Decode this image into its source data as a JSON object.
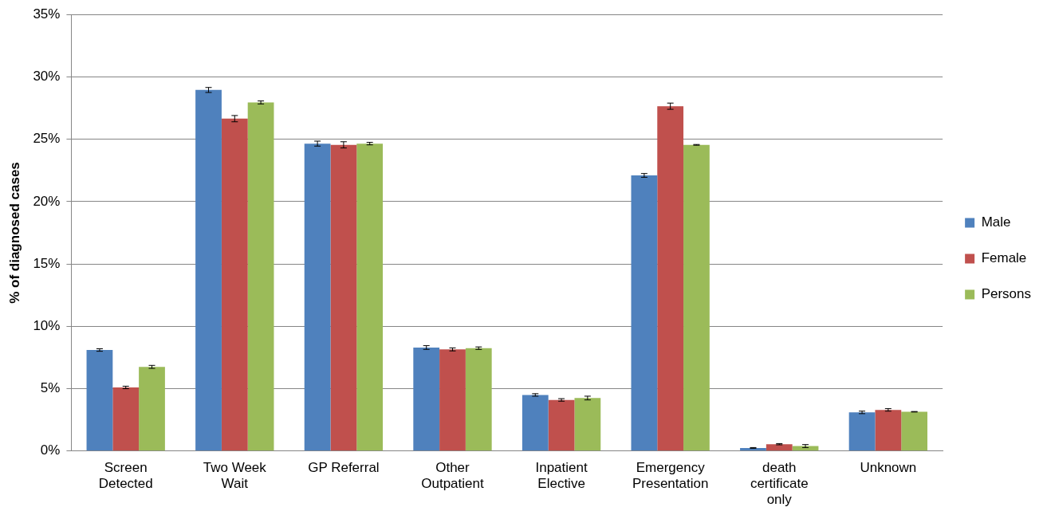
{
  "chart_data": {
    "type": "bar",
    "ylabel": "% of diagnosed cases",
    "categories": [
      "Screen Detected",
      "Two Week Wait",
      "GP Referral",
      "Other Outpatient",
      "Inpatient Elective",
      "Emergency Presentation",
      "death certificate only",
      "Unknown"
    ],
    "series": [
      {
        "name": "Male",
        "color": "#4f81bd",
        "values": [
          8.1,
          28.95,
          24.65,
          8.3,
          4.5,
          22.1,
          0.25,
          3.1
        ],
        "errors": [
          0.1,
          0.2,
          0.2,
          0.15,
          0.1,
          0.15,
          0.03,
          0.1
        ]
      },
      {
        "name": "Female",
        "color": "#c0504d",
        "values": [
          5.1,
          26.65,
          24.55,
          8.15,
          4.1,
          27.65,
          0.55,
          3.3
        ],
        "errors": [
          0.1,
          0.25,
          0.25,
          0.12,
          0.1,
          0.25,
          0.05,
          0.1
        ]
      },
      {
        "name": "Persons",
        "color": "#9bbb59",
        "values": [
          6.75,
          27.95,
          24.65,
          8.25,
          4.25,
          24.55,
          0.4,
          3.15
        ],
        "errors": [
          0.12,
          0.12,
          0.1,
          0.1,
          0.15,
          0.03,
          0.12,
          0.02
        ]
      }
    ],
    "ylim": [
      0,
      35
    ],
    "yticks": [
      {
        "value": 0,
        "label": "0%"
      },
      {
        "value": 5,
        "label": "5%"
      },
      {
        "value": 10,
        "label": "10%"
      },
      {
        "value": 15,
        "label": "15%"
      },
      {
        "value": 20,
        "label": "20%"
      },
      {
        "value": 25,
        "label": "25%"
      },
      {
        "value": 30,
        "label": "30%"
      },
      {
        "value": 35,
        "label": "35%"
      }
    ],
    "grid": "y",
    "legend": "right"
  }
}
